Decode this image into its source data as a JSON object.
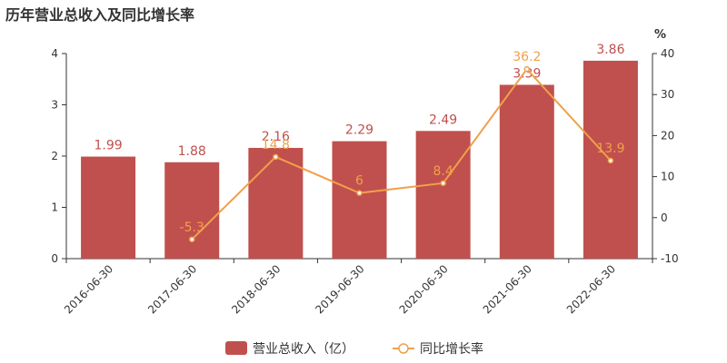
{
  "title": "历年营业总收入及同比增长率",
  "colors": {
    "bar": "#c0504d",
    "line": "#f0a04b",
    "axis": "#333333"
  },
  "chart_data": {
    "type": "bar",
    "title": "历年营业总收入及同比增长率",
    "categories": [
      "2016-06-30",
      "2017-06-30",
      "2018-06-30",
      "2019-06-30",
      "2020-06-30",
      "2021-06-30",
      "2022-06-30"
    ],
    "series": [
      {
        "name": "营业总收入（亿）",
        "type": "bar",
        "axis": "left",
        "values": [
          1.99,
          1.88,
          2.16,
          2.29,
          2.49,
          3.39,
          3.86
        ]
      },
      {
        "name": "同比增长率",
        "type": "line",
        "axis": "right",
        "values": [
          null,
          -5.3,
          14.8,
          6,
          8.4,
          36.2,
          13.9
        ]
      }
    ],
    "y_left": {
      "min": 0,
      "max": 4,
      "ticks": [
        0,
        1,
        2,
        3,
        4
      ]
    },
    "y_right": {
      "label": "%",
      "min": -10,
      "max": 40,
      "ticks": [
        -10,
        0,
        10,
        20,
        30,
        40
      ]
    },
    "legend_position": "bottom"
  }
}
